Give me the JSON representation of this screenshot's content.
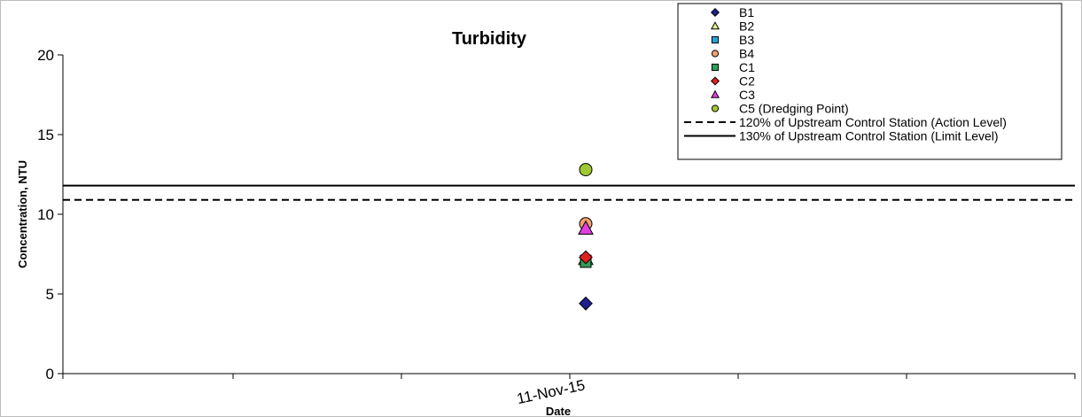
{
  "chart_data": {
    "type": "scatter",
    "title": "Turbidity",
    "xlabel": "Date",
    "ylabel": "Concentration, NTU",
    "ylim": [
      0,
      20
    ],
    "yticks": [
      0,
      5,
      10,
      15,
      20
    ],
    "x_categories": [
      "11-Nov-15"
    ],
    "grid": false,
    "legend_position": "top-right",
    "series": [
      {
        "name": "B1",
        "marker": "diamond",
        "color": "#1f1f8f",
        "values": [
          4.4
        ]
      },
      {
        "name": "B2",
        "marker": "triangle",
        "color": "#e8f08a",
        "values": [
          7.2
        ]
      },
      {
        "name": "B3",
        "marker": "square",
        "color": "#2f9fd8",
        "values": [
          7.1
        ]
      },
      {
        "name": "B4",
        "marker": "circle",
        "color": "#f2a070",
        "values": [
          9.4
        ]
      },
      {
        "name": "C1",
        "marker": "square",
        "color": "#2e9e58",
        "values": [
          7.0
        ]
      },
      {
        "name": "C2",
        "marker": "diamond",
        "color": "#e02020",
        "values": [
          7.3
        ]
      },
      {
        "name": "C3",
        "marker": "triangle",
        "color": "#e040e0",
        "values": [
          9.1
        ]
      },
      {
        "name": "C5 (Dredging Point)",
        "marker": "circle",
        "color": "#a0c830",
        "values": [
          12.8
        ]
      }
    ],
    "reference_lines": [
      {
        "name": "120% of Upstream Control Station (Action Level)",
        "style": "dashed",
        "color": "#000000",
        "value": 10.9
      },
      {
        "name": "130% of Upstream Control Station (Limit Level)",
        "style": "solid",
        "color": "#000000",
        "value": 11.8
      }
    ]
  }
}
